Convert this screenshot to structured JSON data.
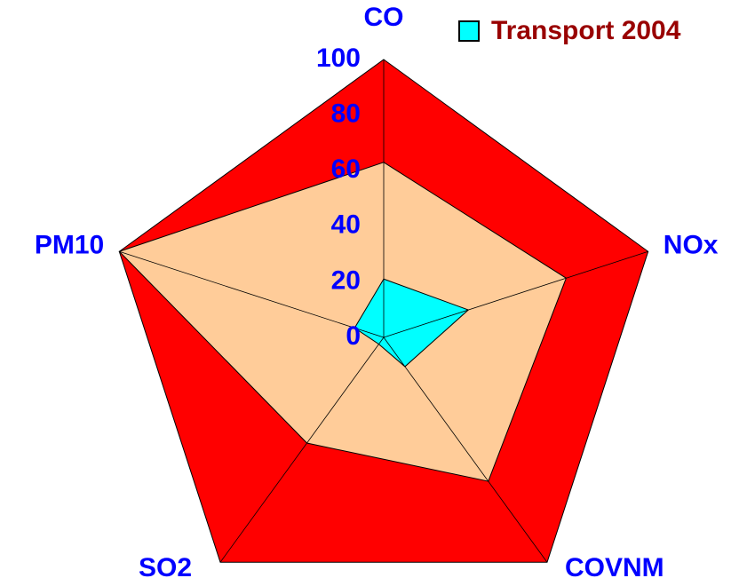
{
  "chart_data": {
    "type": "radar",
    "categories": [
      "CO",
      "NOx",
      "COVNM",
      "SO2",
      "PM10"
    ],
    "series": [
      {
        "color": "#ff0000",
        "values": [
          100,
          100,
          100,
          100,
          100
        ]
      },
      {
        "color": "#ffcc99",
        "values": [
          63,
          69,
          64,
          47,
          100
        ]
      },
      {
        "name": "Transport 2004",
        "color": "#00ffff",
        "values": [
          21,
          32,
          13,
          3,
          11
        ]
      }
    ],
    "ylim": [
      0,
      100
    ],
    "yticks": [
      0,
      20,
      40,
      60,
      80,
      100
    ],
    "legend": "top-right",
    "label_color": "#0000ff",
    "legend_text_color": "#990000"
  }
}
